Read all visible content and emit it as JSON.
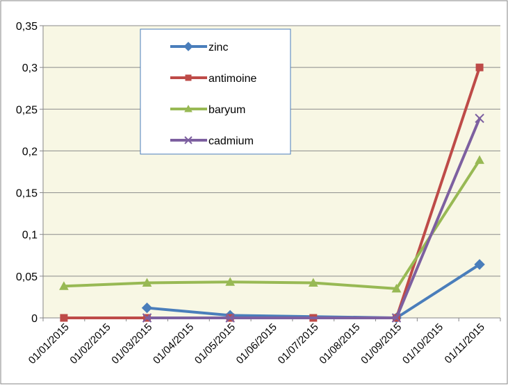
{
  "chart_data": {
    "type": "line",
    "categories": [
      "01/01/2015",
      "01/02/2015",
      "01/03/2015",
      "01/04/2015",
      "01/05/2015",
      "01/06/2015",
      "01/07/2015",
      "01/08/2015",
      "01/09/2015",
      "01/10/2015",
      "01/11/2015"
    ],
    "yticks": [
      "0",
      "0,05",
      "0,1",
      "0,15",
      "0,2",
      "0,25",
      "0,3",
      "0,35"
    ],
    "ylim": [
      0,
      0.35
    ],
    "grid": true,
    "legend_position": "top-left inside",
    "series": [
      {
        "name": "zinc",
        "color": "#4a7ebb",
        "marker": "diamond",
        "points": [
          [
            "01/03/2015",
            0.012
          ],
          [
            "01/05/2015",
            0.003
          ],
          [
            "01/09/2015",
            0
          ],
          [
            "01/11/2015",
            0.064
          ]
        ]
      },
      {
        "name": "antimoine",
        "color": "#be4b48",
        "marker": "square",
        "points": [
          [
            "01/01/2015",
            0
          ],
          [
            "01/03/2015",
            0
          ],
          [
            "01/05/2015",
            0
          ],
          [
            "01/07/2015",
            0
          ],
          [
            "01/09/2015",
            0
          ],
          [
            "01/11/2015",
            0.3
          ]
        ]
      },
      {
        "name": "baryum",
        "color": "#98b954",
        "marker": "triangle",
        "points": [
          [
            "01/01/2015",
            0.038
          ],
          [
            "01/03/2015",
            0.042
          ],
          [
            "01/05/2015",
            0.043
          ],
          [
            "01/07/2015",
            0.042
          ],
          [
            "01/09/2015",
            0.035
          ],
          [
            "01/11/2015",
            0.189
          ]
        ]
      },
      {
        "name": "cadmium",
        "color": "#7d60a0",
        "marker": "x",
        "points": [
          [
            "01/03/2015",
            0
          ],
          [
            "01/05/2015",
            0
          ],
          [
            "01/09/2015",
            0
          ],
          [
            "01/11/2015",
            0.239
          ]
        ]
      }
    ]
  }
}
